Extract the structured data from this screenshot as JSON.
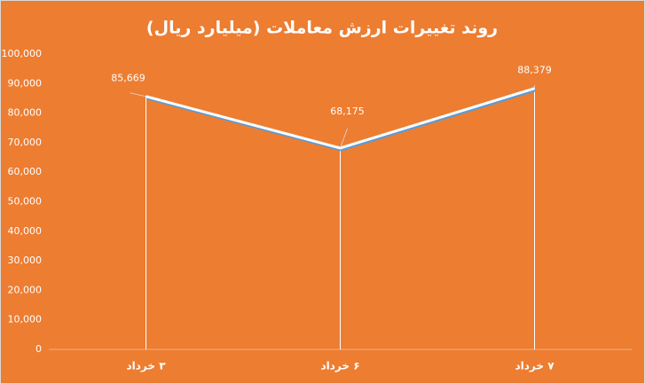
{
  "chart_data": {
    "type": "line",
    "title": "روند تغییرات ارزش معاملات (میلیارد ریال)",
    "categories": [
      "۳ خرداد",
      "۶ خرداد",
      "۷ خرداد"
    ],
    "values": [
      85669,
      68175,
      88379
    ],
    "value_labels": [
      "85,669",
      "68,175",
      "88,379"
    ],
    "color": "#ffffff",
    "shadow_color": "#5b9bd5",
    "drop_lines": true,
    "ylim": [
      0,
      100000
    ],
    "yticks": [
      0,
      {
        "value": 10000,
        "label": "10,000"
      },
      {
        "value": 20000,
        "label": "20,000"
      },
      {
        "value": 30000,
        "label": "30,000"
      },
      {
        "value": 40000,
        "label": "40,000"
      },
      {
        "value": 50000,
        "label": "50,000"
      },
      {
        "value": 60000,
        "label": "60,000"
      },
      {
        "value": 70000,
        "label": "70,000"
      },
      {
        "value": 80000,
        "label": "80,000"
      },
      {
        "value": 90000,
        "label": "90,000"
      },
      {
        "value": 100000,
        "label": "100,000"
      }
    ]
  }
}
